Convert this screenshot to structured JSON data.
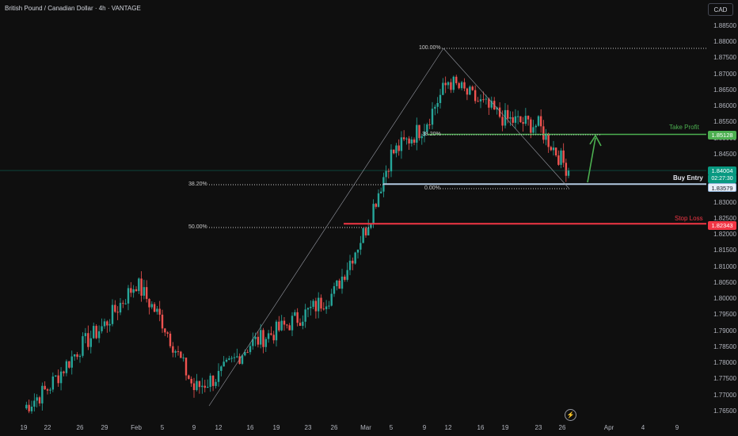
{
  "header": {
    "symbol_title": "British Pound / Canadian Dollar · 4h · VANTAGE",
    "currency": "CAD"
  },
  "price_axis": {
    "ticks": [
      "1.88500",
      "1.88000",
      "1.87500",
      "1.87000",
      "1.86500",
      "1.86000",
      "1.85500",
      "1.85000",
      "1.84500",
      "1.84000",
      "1.83500",
      "1.83000",
      "1.82500",
      "1.82000",
      "1.81500",
      "1.81000",
      "1.80500",
      "1.80000",
      "1.79500",
      "1.79000",
      "1.78500",
      "1.78000",
      "1.77500",
      "1.77000",
      "1.76500"
    ]
  },
  "time_axis": {
    "labels": [
      "19",
      "22",
      "26",
      "29",
      "Feb",
      "5",
      "9",
      "12",
      "16",
      "19",
      "23",
      "26",
      "Mar",
      "5",
      "9",
      "12",
      "16",
      "19",
      "23",
      "26",
      "Apr",
      "4",
      "9"
    ]
  },
  "price_tags": {
    "take_profit": "1.85128",
    "current_price": "1.84004",
    "countdown": "02:27:30",
    "buy_entry": "1.83579",
    "stop_loss": "1.82343"
  },
  "annotations": {
    "take_profit_label": "Take Profit",
    "buy_entry_label": "Buy Entry",
    "stop_loss_label": "Stop Loss"
  },
  "fib_left": {
    "level_382": "38.20%",
    "level_50": "50.00%"
  },
  "fib_right": {
    "level_100": "100.00%",
    "level_382": "38.20%",
    "level_0": "0.00%"
  },
  "colors": {
    "bull": "#26a69a",
    "bear": "#ef5350",
    "take_profit": "#4caf50",
    "stop_loss": "#f23645",
    "entry": "#b2c8e0"
  },
  "chart_data": {
    "type": "candlestick",
    "title": "British Pound / Canadian Dollar · 4h · VANTAGE",
    "y_range": [
      1.7635,
      1.8877
    ],
    "x": [
      "19",
      "22",
      "26",
      "29",
      "Feb",
      "5",
      "9",
      "12",
      "16",
      "19",
      "23",
      "26",
      "Mar",
      "5",
      "9",
      "12",
      "16",
      "19",
      "23",
      "26",
      "Apr",
      "4",
      "9"
    ],
    "anchors": [
      {
        "date": "19",
        "close": 1.766
      },
      {
        "date": "22",
        "close": 1.772
      },
      {
        "date": "26",
        "close": 1.785
      },
      {
        "date": "29",
        "close": 1.792
      },
      {
        "date": "Feb",
        "close": 1.805
      },
      {
        "date": "5",
        "close": 1.793
      },
      {
        "date": "9",
        "close": 1.772
      },
      {
        "date": "12",
        "close": 1.776
      },
      {
        "date": "16",
        "close": 1.786
      },
      {
        "date": "19",
        "close": 1.79
      },
      {
        "date": "23",
        "close": 1.796
      },
      {
        "date": "26",
        "close": 1.802
      },
      {
        "date": "Mar",
        "close": 1.822
      },
      {
        "date": "5",
        "close": 1.845
      },
      {
        "date": "9",
        "close": 1.854
      },
      {
        "date": "12",
        "close": 1.868
      },
      {
        "date": "16",
        "close": 1.861
      },
      {
        "date": "19",
        "close": 1.856
      },
      {
        "date": "23",
        "close": 1.854
      },
      {
        "date": "26",
        "close": 1.84
      }
    ],
    "levels": {
      "take_profit": 1.85128,
      "current": 1.84004,
      "buy_entry": 1.83579,
      "stop_loss": 1.82343
    }
  }
}
